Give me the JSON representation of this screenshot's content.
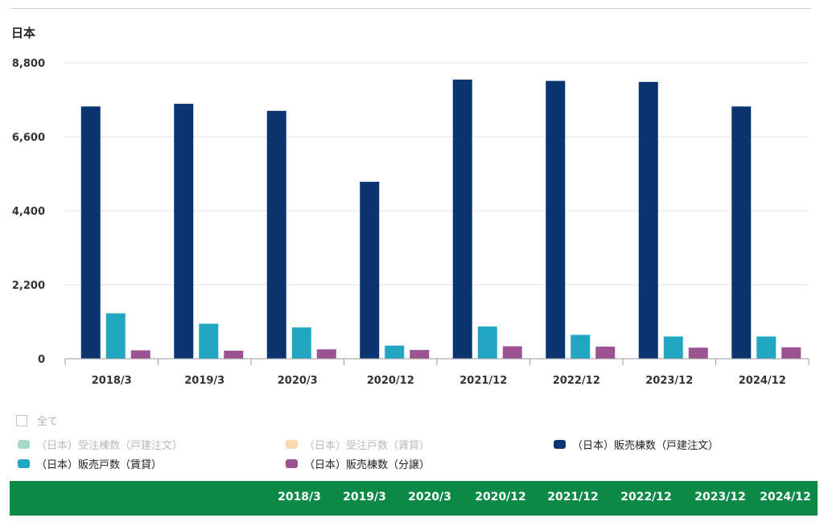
{
  "region_label": "日本",
  "chart_data": {
    "type": "bar",
    "categories": [
      "2018/3",
      "2019/3",
      "2020/3",
      "2020/12",
      "2021/12",
      "2022/12",
      "2023/12",
      "2024/12"
    ],
    "ylim": [
      0,
      8800
    ],
    "yticks": [
      "0",
      "2,200",
      "4,400",
      "6,600",
      "8,800"
    ],
    "ytick_values": [
      0,
      2200,
      4400,
      6600,
      8800
    ],
    "grid": true,
    "series": [
      {
        "name": "（日本）販売棟数（戸建注文）",
        "color": "#0a3570",
        "values": [
          7500,
          7580,
          7370,
          5260,
          8300,
          8260,
          8230,
          7500
        ]
      },
      {
        "name": "（日本）販売戸数（賃貸）",
        "color": "#21a7c4",
        "values": [
          1350,
          1040,
          930,
          390,
          960,
          710,
          660,
          660
        ]
      },
      {
        "name": "（日本）販売棟数（分譲）",
        "color": "#9c5394",
        "values": [
          250,
          240,
          280,
          260,
          370,
          360,
          330,
          340
        ]
      }
    ]
  },
  "legend": {
    "select_all": "全て",
    "items": [
      {
        "label": "（日本）受注棟数（戸建注文）",
        "color": "#a9d9c4",
        "active": false
      },
      {
        "label": "（日本）受注戸数（賃貸）",
        "color": "#f8d9b0",
        "active": false
      },
      {
        "label": "（日本）販売棟数（戸建注文）",
        "color": "#0a3570",
        "active": true
      },
      {
        "label": "（日本）販売戸数（賃貸）",
        "color": "#21a7c4",
        "active": true
      },
      {
        "label": "（日本）販売棟数（分譲）",
        "color": "#9c5394",
        "active": true
      }
    ]
  },
  "table_header": [
    "2018/3",
    "2019/3",
    "2020/3",
    "2020/12",
    "2021/12",
    "2022/12",
    "2023/12",
    "2024/12"
  ]
}
